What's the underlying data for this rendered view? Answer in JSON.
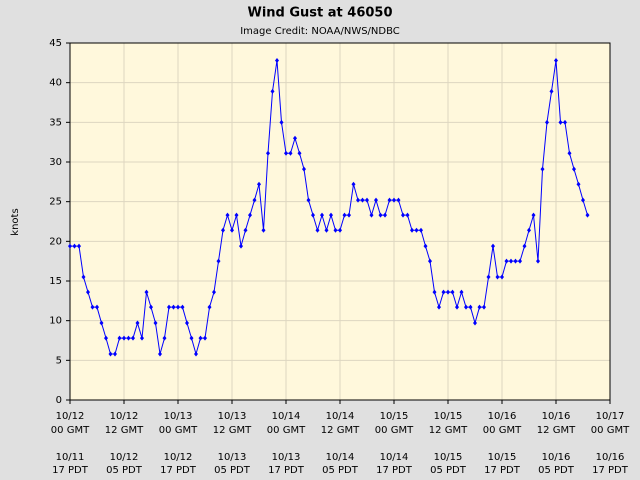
{
  "chart_data": {
    "type": "line",
    "title": "Wind Gust at 46050",
    "subtitle": "Image Credit: NOAA/NWS/NDBC",
    "ylabel": "knots",
    "x": [
      0,
      1,
      2,
      3,
      4,
      5,
      6,
      7,
      8,
      9,
      10,
      11,
      12,
      13,
      14,
      15,
      16,
      17,
      18,
      19,
      20,
      21,
      22,
      23,
      24,
      25,
      26,
      27,
      28,
      29,
      30,
      31,
      32,
      33,
      34,
      35,
      36,
      37,
      38,
      39,
      40,
      41,
      42,
      43,
      44,
      45,
      46,
      47,
      48,
      49,
      50,
      51,
      52,
      53,
      54,
      55,
      56,
      57,
      58,
      59,
      60,
      61,
      62,
      63,
      64,
      65,
      66,
      67,
      68,
      69,
      70,
      71,
      72,
      73,
      74,
      75,
      76,
      77,
      78,
      79,
      80,
      81,
      82,
      83,
      84,
      85,
      86,
      87,
      88,
      89,
      90,
      91,
      92,
      93,
      94,
      95,
      96,
      97,
      98,
      99,
      100,
      101,
      102,
      103,
      104,
      105,
      106,
      107,
      108,
      109,
      110,
      111,
      112,
      113,
      114,
      115
    ],
    "series": [
      {
        "name": "Wind Gust",
        "color": "#0000ff",
        "values": [
          19.4,
          19.4,
          19.4,
          15.5,
          13.6,
          11.7,
          11.7,
          9.7,
          7.8,
          5.8,
          5.8,
          7.8,
          7.8,
          7.8,
          7.8,
          9.7,
          7.8,
          13.6,
          11.7,
          9.7,
          5.8,
          7.8,
          11.7,
          11.7,
          11.7,
          11.7,
          9.7,
          7.8,
          5.8,
          7.8,
          7.8,
          11.7,
          13.6,
          17.5,
          21.4,
          23.3,
          21.4,
          23.3,
          19.4,
          21.4,
          23.3,
          25.2,
          27.2,
          21.4,
          31.1,
          38.9,
          42.8,
          35,
          31.1,
          31.1,
          33,
          31.1,
          29.1,
          25.2,
          23.3,
          21.4,
          23.3,
          21.4,
          23.3,
          21.4,
          21.4,
          23.3,
          23.3,
          27.2,
          25.2,
          25.2,
          25.2,
          23.3,
          25.2,
          23.3,
          23.3,
          25.2,
          25.2,
          25.2,
          23.3,
          23.3,
          21.4,
          21.4,
          21.4,
          19.4,
          17.5,
          13.6,
          11.7,
          13.6,
          13.6,
          13.6,
          11.7,
          13.6,
          11.7,
          11.7,
          9.7,
          11.7,
          11.7,
          15.5,
          19.4,
          15.5,
          15.5,
          17.5,
          17.5,
          17.5,
          17.5,
          19.4,
          21.4,
          23.3,
          17.5,
          29.1,
          35,
          38.9,
          42.8,
          35,
          35,
          31.1,
          29.1,
          27.2,
          25.2,
          23.3
        ]
      }
    ],
    "xlim": [
      0,
      120
    ],
    "xticks": [
      {
        "value": 0,
        "label": "10/12"
      },
      {
        "value": 12,
        "label": "10/12"
      },
      {
        "value": 24,
        "label": "10/13"
      },
      {
        "value": 36,
        "label": "10/13"
      },
      {
        "value": 48,
        "label": "10/14"
      },
      {
        "value": 60,
        "label": "10/14"
      },
      {
        "value": 72,
        "label": "10/15"
      },
      {
        "value": 84,
        "label": "10/15"
      },
      {
        "value": 96,
        "label": "10/16"
      },
      {
        "value": 108,
        "label": "10/16"
      },
      {
        "value": 120,
        "label": "10/17"
      }
    ],
    "xtick_times": [
      "00 GMT",
      "12 GMT",
      "00 GMT",
      "12 GMT",
      "00 GMT",
      "12 GMT",
      "00 GMT",
      "12 GMT",
      "00 GMT",
      "12 GMT",
      "00 GMT"
    ],
    "local_dates": [
      "10/11",
      "10/12",
      "10/12",
      "10/13",
      "10/13",
      "10/14",
      "10/14",
      "10/15",
      "10/15",
      "10/16",
      "10/16"
    ],
    "local_times": [
      "17 PDT",
      "05 PDT",
      "17 PDT",
      "05 PDT",
      "17 PDT",
      "05 PDT",
      "17 PDT",
      "05 PDT",
      "17 PDT",
      "05 PDT",
      "17 PDT"
    ],
    "ylim": [
      0,
      45
    ],
    "yticks": [
      0,
      5,
      10,
      15,
      20,
      25,
      30,
      35,
      40,
      45
    ],
    "grid": true
  }
}
